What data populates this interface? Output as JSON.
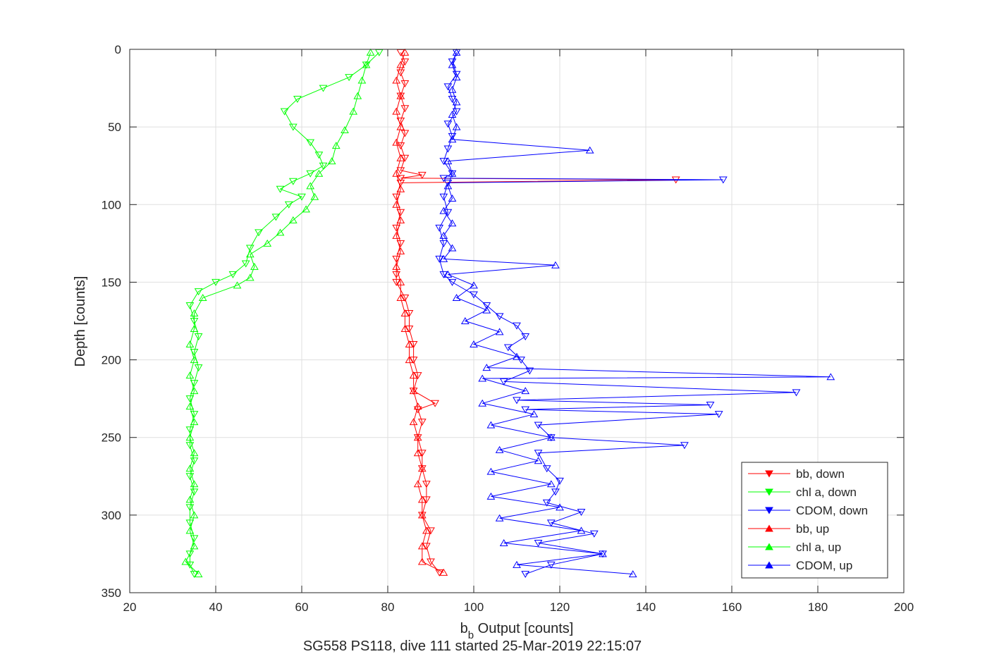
{
  "chart_data": {
    "type": "line",
    "title": "SG558 PS118, dive 111 started 25-Mar-2019 22:15:07",
    "xlabel": {
      "main": "b",
      "sub": "b",
      "rest": " Output [counts]"
    },
    "ylabel": "Depth [counts]",
    "xlim": [
      20,
      200
    ],
    "ylim": [
      0,
      350
    ],
    "y_reversed": true,
    "grid": true,
    "legend_position": "lower-right",
    "x_ticks": [
      20,
      40,
      60,
      80,
      100,
      120,
      140,
      160,
      180,
      200
    ],
    "y_ticks": [
      0,
      50,
      100,
      150,
      200,
      250,
      300,
      350
    ],
    "x_tick_labels": [
      "20",
      "40",
      "60",
      "80",
      "100",
      "120",
      "140",
      "160",
      "180",
      "200"
    ],
    "y_tick_labels": [
      "0",
      "50",
      "100",
      "150",
      "200",
      "250",
      "300",
      "350"
    ],
    "series": [
      {
        "name": "bb, down",
        "color": "#ff0000",
        "marker": "triangle-down",
        "direction": "down",
        "points": [
          [
            83,
            2
          ],
          [
            84,
            8
          ],
          [
            83,
            15
          ],
          [
            84,
            22
          ],
          [
            83,
            30
          ],
          [
            84,
            38
          ],
          [
            83,
            46
          ],
          [
            84,
            54
          ],
          [
            83,
            62
          ],
          [
            84,
            70
          ],
          [
            83,
            78
          ],
          [
            88,
            81
          ],
          [
            83,
            83
          ],
          [
            147,
            84
          ],
          [
            83,
            86
          ],
          [
            82,
            95
          ],
          [
            83,
            105
          ],
          [
            82,
            115
          ],
          [
            83,
            125
          ],
          [
            82,
            135
          ],
          [
            82,
            145
          ],
          [
            82,
            150
          ],
          [
            84,
            160
          ],
          [
            85,
            170
          ],
          [
            85,
            180
          ],
          [
            86,
            190
          ],
          [
            86,
            200
          ],
          [
            87,
            210
          ],
          [
            86,
            220
          ],
          [
            91,
            228
          ],
          [
            87,
            232
          ],
          [
            88,
            240
          ],
          [
            87,
            250
          ],
          [
            88,
            260
          ],
          [
            88,
            270
          ],
          [
            89,
            280
          ],
          [
            89,
            290
          ],
          [
            88,
            300
          ],
          [
            90,
            310
          ],
          [
            89,
            320
          ],
          [
            90,
            330
          ],
          [
            92,
            337
          ]
        ]
      },
      {
        "name": "chl a, down",
        "color": "#00ff00",
        "marker": "triangle-down",
        "direction": "down",
        "points": [
          [
            78,
            2
          ],
          [
            75,
            10
          ],
          [
            71,
            18
          ],
          [
            65,
            25
          ],
          [
            59,
            32
          ],
          [
            56,
            40
          ],
          [
            58,
            50
          ],
          [
            62,
            60
          ],
          [
            64,
            68
          ],
          [
            65,
            75
          ],
          [
            62,
            80
          ],
          [
            58,
            85
          ],
          [
            55,
            90
          ],
          [
            60,
            95
          ],
          [
            57,
            100
          ],
          [
            54,
            108
          ],
          [
            50,
            118
          ],
          [
            48,
            128
          ],
          [
            47,
            138
          ],
          [
            44,
            145
          ],
          [
            40,
            150
          ],
          [
            36,
            156
          ],
          [
            34,
            165
          ],
          [
            35,
            175
          ],
          [
            36,
            185
          ],
          [
            35,
            195
          ],
          [
            36,
            205
          ],
          [
            35,
            215
          ],
          [
            34,
            225
          ],
          [
            35,
            235
          ],
          [
            34,
            245
          ],
          [
            34,
            255
          ],
          [
            35,
            265
          ],
          [
            34,
            275
          ],
          [
            35,
            285
          ],
          [
            34,
            295
          ],
          [
            34,
            305
          ],
          [
            35,
            315
          ],
          [
            34,
            325
          ],
          [
            34,
            332
          ],
          [
            35,
            338
          ]
        ]
      },
      {
        "name": "CDOM, down",
        "color": "#0000ff",
        "marker": "triangle-down",
        "direction": "down",
        "points": [
          [
            96,
            2
          ],
          [
            95,
            8
          ],
          [
            96,
            16
          ],
          [
            94,
            24
          ],
          [
            95,
            32
          ],
          [
            96,
            40
          ],
          [
            94,
            48
          ],
          [
            95,
            56
          ],
          [
            94,
            64
          ],
          [
            93,
            72
          ],
          [
            95,
            80
          ],
          [
            93,
            83
          ],
          [
            158,
            84
          ],
          [
            94,
            86
          ],
          [
            93,
            95
          ],
          [
            94,
            105
          ],
          [
            92,
            115
          ],
          [
            93,
            125
          ],
          [
            92,
            135
          ],
          [
            93,
            145
          ],
          [
            95,
            150
          ],
          [
            100,
            158
          ],
          [
            103,
            165
          ],
          [
            106,
            172
          ],
          [
            110,
            178
          ],
          [
            112,
            185
          ],
          [
            108,
            192
          ],
          [
            111,
            200
          ],
          [
            113,
            207
          ],
          [
            107,
            214
          ],
          [
            175,
            221
          ],
          [
            110,
            226
          ],
          [
            155,
            229
          ],
          [
            112,
            232
          ],
          [
            157,
            235
          ],
          [
            115,
            242
          ],
          [
            118,
            250
          ],
          [
            149,
            255
          ],
          [
            115,
            260
          ],
          [
            117,
            270
          ],
          [
            120,
            278
          ],
          [
            119,
            285
          ],
          [
            117,
            292
          ],
          [
            125,
            298
          ],
          [
            118,
            305
          ],
          [
            128,
            312
          ],
          [
            115,
            318
          ],
          [
            130,
            325
          ],
          [
            118,
            332
          ],
          [
            112,
            338
          ]
        ]
      },
      {
        "name": "bb, up",
        "color": "#ff0000",
        "marker": "triangle-up",
        "direction": "up",
        "points": [
          [
            93,
            337
          ],
          [
            88,
            330
          ],
          [
            88,
            320
          ],
          [
            89,
            310
          ],
          [
            88,
            300
          ],
          [
            88,
            290
          ],
          [
            87,
            280
          ],
          [
            88,
            270
          ],
          [
            87,
            260
          ],
          [
            87,
            250
          ],
          [
            86,
            240
          ],
          [
            87,
            230
          ],
          [
            86,
            220
          ],
          [
            86,
            210
          ],
          [
            85,
            200
          ],
          [
            85,
            190
          ],
          [
            84,
            180
          ],
          [
            84,
            170
          ],
          [
            83,
            160
          ],
          [
            83,
            150
          ],
          [
            82,
            140
          ],
          [
            83,
            130
          ],
          [
            82,
            120
          ],
          [
            83,
            110
          ],
          [
            82,
            100
          ],
          [
            83,
            90
          ],
          [
            82,
            80
          ],
          [
            83,
            70
          ],
          [
            82,
            60
          ],
          [
            83,
            50
          ],
          [
            82,
            40
          ],
          [
            83,
            30
          ],
          [
            82,
            20
          ],
          [
            83,
            10
          ],
          [
            84,
            2
          ]
        ]
      },
      {
        "name": "chl a, up",
        "color": "#00ff00",
        "marker": "triangle-up",
        "direction": "up",
        "points": [
          [
            36,
            338
          ],
          [
            33,
            330
          ],
          [
            35,
            320
          ],
          [
            34,
            310
          ],
          [
            35,
            300
          ],
          [
            34,
            290
          ],
          [
            35,
            280
          ],
          [
            34,
            270
          ],
          [
            35,
            260
          ],
          [
            34,
            250
          ],
          [
            35,
            240
          ],
          [
            34,
            230
          ],
          [
            35,
            220
          ],
          [
            34,
            210
          ],
          [
            35,
            200
          ],
          [
            34,
            190
          ],
          [
            35,
            180
          ],
          [
            35,
            170
          ],
          [
            37,
            160
          ],
          [
            45,
            152
          ],
          [
            48,
            147
          ],
          [
            49,
            140
          ],
          [
            48,
            132
          ],
          [
            52,
            125
          ],
          [
            55,
            118
          ],
          [
            58,
            110
          ],
          [
            61,
            103
          ],
          [
            63,
            95
          ],
          [
            62,
            88
          ],
          [
            64,
            80
          ],
          [
            67,
            72
          ],
          [
            68,
            62
          ],
          [
            70,
            52
          ],
          [
            72,
            40
          ],
          [
            73,
            30
          ],
          [
            74,
            20
          ],
          [
            75,
            10
          ],
          [
            76,
            2
          ]
        ]
      },
      {
        "name": "CDOM, up",
        "color": "#0000ff",
        "marker": "triangle-up",
        "direction": "up",
        "points": [
          [
            137,
            338
          ],
          [
            110,
            332
          ],
          [
            130,
            325
          ],
          [
            107,
            318
          ],
          [
            125,
            310
          ],
          [
            106,
            302
          ],
          [
            120,
            295
          ],
          [
            104,
            288
          ],
          [
            118,
            280
          ],
          [
            104,
            272
          ],
          [
            115,
            265
          ],
          [
            106,
            258
          ],
          [
            118,
            250
          ],
          [
            104,
            242
          ],
          [
            114,
            235
          ],
          [
            102,
            228
          ],
          [
            112,
            220
          ],
          [
            102,
            212
          ],
          [
            183,
            211
          ],
          [
            103,
            205
          ],
          [
            110,
            198
          ],
          [
            100,
            190
          ],
          [
            106,
            182
          ],
          [
            98,
            175
          ],
          [
            103,
            168
          ],
          [
            96,
            160
          ],
          [
            100,
            152
          ],
          [
            94,
            145
          ],
          [
            119,
            139
          ],
          [
            93,
            135
          ],
          [
            95,
            128
          ],
          [
            93,
            120
          ],
          [
            95,
            112
          ],
          [
            93,
            104
          ],
          [
            95,
            96
          ],
          [
            94,
            88
          ],
          [
            95,
            80
          ],
          [
            94,
            72
          ],
          [
            127,
            65
          ],
          [
            95,
            58
          ],
          [
            96,
            50
          ],
          [
            95,
            42
          ],
          [
            96,
            34
          ],
          [
            95,
            26
          ],
          [
            96,
            18
          ],
          [
            95,
            10
          ],
          [
            96,
            2
          ]
        ]
      }
    ]
  }
}
